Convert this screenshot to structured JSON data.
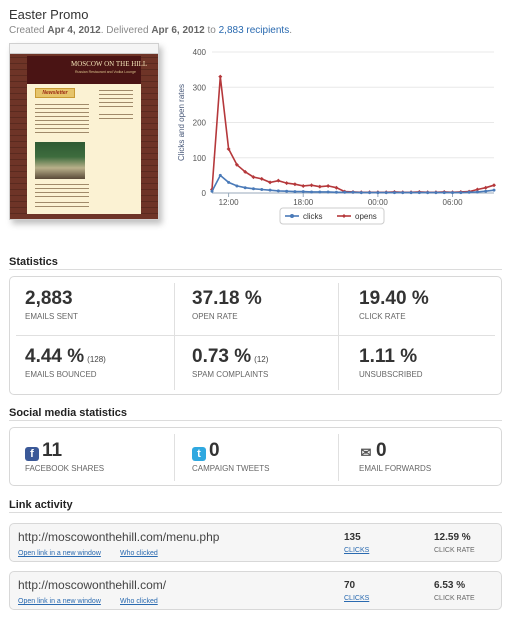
{
  "campaign": {
    "title": "Easter Promo",
    "created_label": "Created",
    "created_date": "Apr 4, 2012",
    "delivered_label": ". Delivered",
    "delivered_date": "Apr 6, 2012",
    "to_label": "to",
    "recipients": "2,883 recipients",
    "trailing": "."
  },
  "preview": {
    "logo_text": "MOSCOW ON THE HILL",
    "logo_sub": "Russian Restaurant and Vodka Lounge",
    "banner": "Newsletter"
  },
  "chart_data": {
    "type": "line",
    "ylabel": "Clicks and open rates",
    "xlabel": "",
    "ylim": [
      0,
      400
    ],
    "yticks": [
      0,
      100,
      200,
      300,
      400
    ],
    "xticks": [
      "12:00",
      "18:00",
      "00:00",
      "06:00"
    ],
    "legend_position": "bottom",
    "grid": true,
    "series": [
      {
        "name": "clicks",
        "color": "#4a7ab8",
        "values": [
          5,
          50,
          30,
          20,
          15,
          12,
          10,
          8,
          6,
          5,
          4,
          4,
          3,
          3,
          3,
          2,
          2,
          2,
          1,
          1,
          1,
          1,
          1,
          1,
          1,
          1,
          1,
          1,
          1,
          1,
          1,
          2,
          3,
          5,
          8
        ]
      },
      {
        "name": "opens",
        "color": "#b5383b",
        "values": [
          10,
          330,
          125,
          80,
          60,
          45,
          40,
          30,
          35,
          28,
          25,
          20,
          22,
          18,
          20,
          15,
          4,
          3,
          2,
          2,
          2,
          2,
          3,
          2,
          2,
          3,
          2,
          2,
          3,
          2,
          3,
          4,
          10,
          15,
          22
        ]
      }
    ]
  },
  "statistics": {
    "heading": "Statistics",
    "cells": [
      {
        "value": "2,883",
        "sub": "",
        "label": "EMAILS SENT"
      },
      {
        "value": "37.18 %",
        "sub": "",
        "label": "OPEN RATE"
      },
      {
        "value": "19.40 %",
        "sub": "",
        "label": "CLICK RATE"
      },
      {
        "value": "4.44 %",
        "sub": "(128)",
        "label": "EMAILS BOUNCED"
      },
      {
        "value": "0.73 %",
        "sub": "(12)",
        "label": "SPAM COMPLAINTS"
      },
      {
        "value": "1.11 %",
        "sub": "",
        "label": "UNSUBSCRIBED"
      }
    ]
  },
  "social": {
    "heading": "Social media statistics",
    "cells": [
      {
        "icon": "facebook-icon",
        "glyph": "f",
        "value": "11",
        "label": "FACEBOOK SHARES"
      },
      {
        "icon": "twitter-icon",
        "glyph": "t",
        "value": "0",
        "label": "CAMPAIGN TWEETS"
      },
      {
        "icon": "envelope-icon",
        "glyph": "✉",
        "value": "0",
        "label": "EMAIL FORWARDS"
      }
    ]
  },
  "links": {
    "heading": "Link activity",
    "open_label": "Open link in a new window",
    "who_label": "Who clicked",
    "clicks_label": "CLICKS",
    "rate_label": "CLICK RATE",
    "items": [
      {
        "url": "http://moscowonthehill.com/menu.php",
        "clicks": "135",
        "rate": "12.59 %"
      },
      {
        "url": "http://moscowonthehill.com/",
        "clicks": "70",
        "rate": "6.53 %"
      }
    ]
  }
}
